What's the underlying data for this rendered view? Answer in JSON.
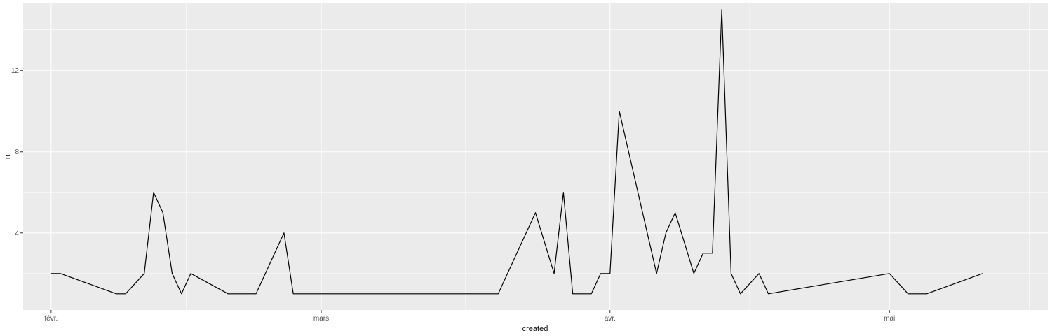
{
  "chart_data": {
    "type": "line",
    "title": "",
    "xlabel": "created",
    "ylabel": "n",
    "x_axis_type": "date",
    "xlim": [
      "2020-01-29",
      "2020-05-18"
    ],
    "ylim": [
      0.2,
      15.3
    ],
    "x_ticks": [
      {
        "date": "2020-02-01",
        "label": "févr."
      },
      {
        "date": "2020-03-01",
        "label": "mars"
      },
      {
        "date": "2020-04-01",
        "label": "avr."
      },
      {
        "date": "2020-05-01",
        "label": "mai"
      }
    ],
    "y_ticks": [
      4,
      8,
      12
    ],
    "grid": true,
    "legend": "none",
    "colors": {
      "panel": "#ebebeb",
      "grid": "#ffffff",
      "line": "#000000"
    },
    "series": [
      {
        "x": [
          "2020-02-01",
          "2020-02-02",
          "2020-02-08",
          "2020-02-09",
          "2020-02-11",
          "2020-02-12",
          "2020-02-13",
          "2020-02-14",
          "2020-02-15",
          "2020-02-16",
          "2020-02-20",
          "2020-02-23",
          "2020-02-26",
          "2020-02-27",
          "2020-03-20",
          "2020-03-24",
          "2020-03-26",
          "2020-03-27",
          "2020-03-28",
          "2020-03-30",
          "2020-03-31",
          "2020-04-01",
          "2020-04-02",
          "2020-04-06",
          "2020-04-07",
          "2020-04-08",
          "2020-04-10",
          "2020-04-11",
          "2020-04-12",
          "2020-04-13",
          "2020-04-14",
          "2020-04-15",
          "2020-04-17",
          "2020-04-18",
          "2020-05-01",
          "2020-05-03",
          "2020-05-05",
          "2020-05-11"
        ],
        "y": [
          2,
          2,
          1,
          1,
          2,
          6,
          5,
          2,
          1,
          2,
          1,
          1,
          4,
          1,
          1,
          5,
          2,
          6,
          1,
          1,
          2,
          2,
          10,
          2,
          4,
          5,
          2,
          3,
          3,
          15,
          2,
          1,
          2,
          1,
          2,
          1,
          1,
          2
        ]
      }
    ]
  }
}
